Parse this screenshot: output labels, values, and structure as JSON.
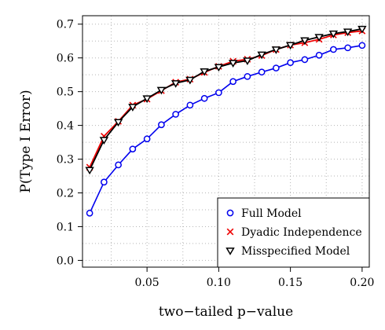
{
  "chart_data": {
    "type": "line",
    "title": "",
    "xlabel": "two−tailed p−value",
    "ylabel": "P(Type I Error)",
    "xlim": [
      0.005,
      0.205
    ],
    "ylim": [
      -0.02,
      0.725
    ],
    "x_ticks": [
      0.05,
      0.1,
      0.15,
      0.2
    ],
    "x_tick_labels": [
      "0.05",
      "0.10",
      "0.15",
      "0.20"
    ],
    "y_ticks": [
      0.0,
      0.1,
      0.2,
      0.3,
      0.4,
      0.5,
      0.6,
      0.7
    ],
    "y_tick_labels": [
      "0.0",
      "0.1",
      "0.2",
      "0.3",
      "0.4",
      "0.5",
      "0.6",
      "0.7"
    ],
    "grid": true,
    "legend_position": "bottom-right",
    "x": [
      0.01,
      0.02,
      0.03,
      0.04,
      0.05,
      0.06,
      0.07,
      0.08,
      0.09,
      0.1,
      0.11,
      0.12,
      0.13,
      0.14,
      0.15,
      0.16,
      0.17,
      0.18,
      0.19,
      0.2
    ],
    "series": [
      {
        "name": "Full Model",
        "color": "#0000ee",
        "marker": "circle",
        "values": [
          0.14,
          0.232,
          0.283,
          0.33,
          0.36,
          0.402,
          0.433,
          0.46,
          0.48,
          0.497,
          0.53,
          0.545,
          0.558,
          0.57,
          0.586,
          0.595,
          0.608,
          0.625,
          0.63,
          0.637
        ]
      },
      {
        "name": "Dyadic Independence",
        "color": "#ee0000",
        "marker": "cross",
        "values": [
          0.276,
          0.368,
          0.412,
          0.46,
          0.478,
          0.503,
          0.528,
          0.537,
          0.557,
          0.575,
          0.59,
          0.596,
          0.607,
          0.625,
          0.638,
          0.645,
          0.655,
          0.668,
          0.675,
          0.68
        ]
      },
      {
        "name": "Misspecified Model",
        "color": "#000000",
        "marker": "triangle-down",
        "values": [
          0.268,
          0.357,
          0.41,
          0.455,
          0.48,
          0.505,
          0.525,
          0.535,
          0.56,
          0.573,
          0.585,
          0.592,
          0.61,
          0.625,
          0.638,
          0.652,
          0.662,
          0.672,
          0.678,
          0.686
        ]
      }
    ]
  }
}
